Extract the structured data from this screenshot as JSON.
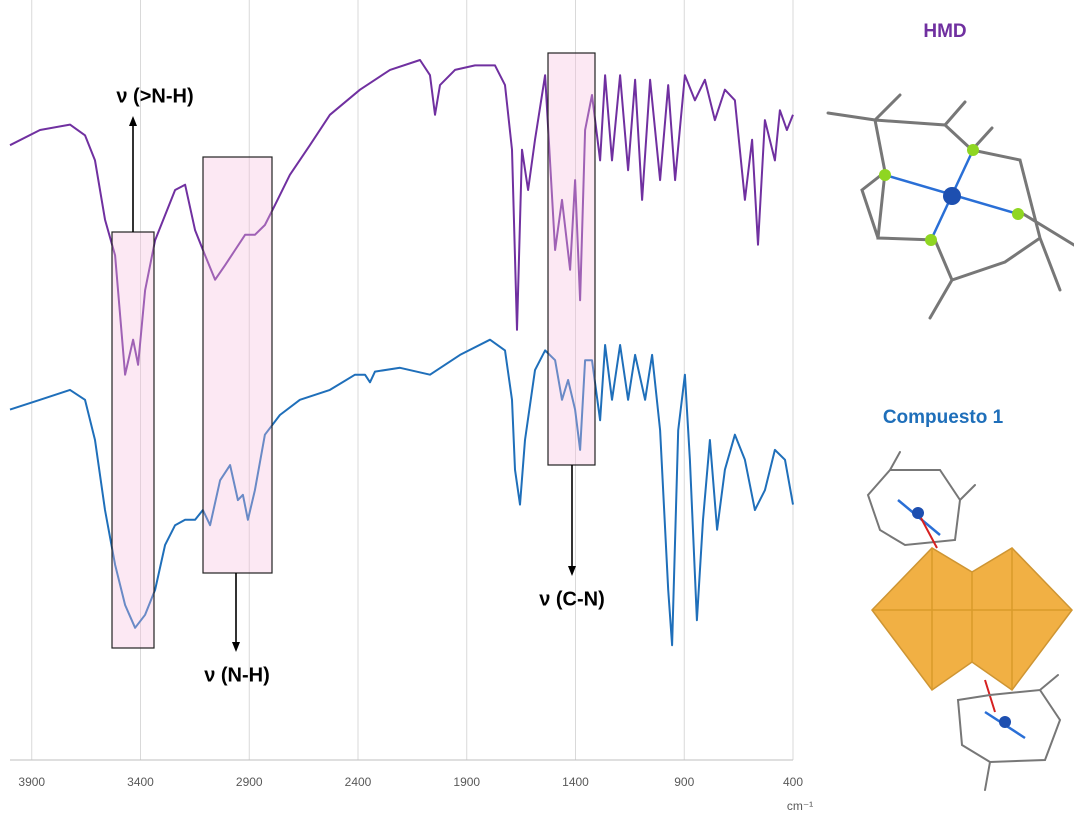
{
  "chart_data": {
    "type": "line",
    "x_label": "cm⁻¹",
    "xlim": [
      4000,
      400
    ],
    "xticks": [
      3900,
      3400,
      2900,
      2400,
      1900,
      1400,
      900,
      400
    ],
    "ylim": [
      0,
      100
    ],
    "grid": true,
    "annotations": [
      "ν (>N-H)",
      "ν (N-H)",
      "ν (C-N)"
    ],
    "series": [
      {
        "name": "HMD",
        "color": "#7030a0",
        "x": [
          4000,
          3862,
          3724,
          3655,
          3609,
          3563,
          3517,
          3471,
          3434,
          3411,
          3379,
          3333,
          3287,
          3241,
          3195,
          3149,
          3103,
          3057,
          3011,
          2965,
          2919,
          2874,
          2828,
          2782,
          2713,
          2621,
          2529,
          2391,
          2253,
          2115,
          2069,
          2046,
          2023,
          1954,
          1862,
          1770,
          1724,
          1692,
          1669,
          1646,
          1618,
          1586,
          1540,
          1494,
          1462,
          1425,
          1402,
          1379,
          1356,
          1324,
          1287,
          1264,
          1232,
          1195,
          1158,
          1126,
          1094,
          1057,
          1011,
          974,
          942,
          897,
          851,
          805,
          759,
          713,
          667,
          621,
          588,
          561,
          529,
          483,
          460,
          428,
          400
        ],
        "values": [
          80.9,
          82.9,
          83.6,
          82.2,
          78.9,
          71.1,
          66.4,
          50.7,
          55.3,
          52.0,
          61.8,
          68.4,
          71.7,
          75.0,
          75.7,
          69.7,
          66.4,
          63.2,
          65.1,
          67.1,
          69.1,
          69.1,
          70.4,
          73.0,
          77.0,
          80.9,
          84.9,
          88.2,
          90.8,
          92.1,
          90.1,
          84.9,
          88.8,
          90.8,
          91.4,
          91.4,
          88.8,
          80.3,
          56.6,
          80.3,
          75.0,
          81.6,
          90.1,
          67.1,
          73.7,
          64.5,
          76.3,
          60.5,
          82.9,
          87.5,
          78.9,
          90.1,
          78.9,
          90.1,
          77.6,
          89.5,
          73.7,
          89.5,
          76.3,
          88.8,
          76.3,
          90.1,
          86.8,
          89.5,
          84.2,
          88.2,
          86.8,
          73.7,
          81.6,
          67.8,
          84.2,
          78.9,
          85.5,
          82.9,
          84.9
        ]
      },
      {
        "name": "Compuesto 1",
        "color": "#1f6fba",
        "x": [
          4000,
          3862,
          3724,
          3655,
          3609,
          3563,
          3517,
          3471,
          3425,
          3379,
          3333,
          3287,
          3241,
          3195,
          3149,
          3113,
          3080,
          3034,
          2988,
          2952,
          2929,
          2906,
          2874,
          2828,
          2759,
          2667,
          2529,
          2414,
          2368,
          2345,
          2322,
          2207,
          2069,
          1931,
          1793,
          1724,
          1692,
          1678,
          1655,
          1632,
          1586,
          1540,
          1494,
          1462,
          1434,
          1402,
          1379,
          1356,
          1324,
          1287,
          1264,
          1232,
          1195,
          1158,
          1126,
          1080,
          1048,
          1011,
          974,
          956,
          928,
          897,
          874,
          842,
          814,
          782,
          749,
          713,
          667,
          621,
          575,
          529,
          483,
          437,
          400
        ],
        "values": [
          46.1,
          47.4,
          48.7,
          47.4,
          42.1,
          32.9,
          25.7,
          20.4,
          17.4,
          19.1,
          22.4,
          28.3,
          30.9,
          31.6,
          31.6,
          32.9,
          30.9,
          36.8,
          38.8,
          34.2,
          34.9,
          31.6,
          35.5,
          42.8,
          45.4,
          47.4,
          48.7,
          50.7,
          50.7,
          49.7,
          51.1,
          51.6,
          50.7,
          53.3,
          55.3,
          53.9,
          47.4,
          38.2,
          33.6,
          42.1,
          51.3,
          53.9,
          52.6,
          47.4,
          50.0,
          46.1,
          40.8,
          52.6,
          52.6,
          44.7,
          54.6,
          47.4,
          54.6,
          47.4,
          53.3,
          47.4,
          53.3,
          43.4,
          22.4,
          15.1,
          43.4,
          50.7,
          39.5,
          18.4,
          31.6,
          42.1,
          30.3,
          38.2,
          42.8,
          39.5,
          32.9,
          35.5,
          40.8,
          39.5,
          33.6
        ]
      }
    ]
  }
}
